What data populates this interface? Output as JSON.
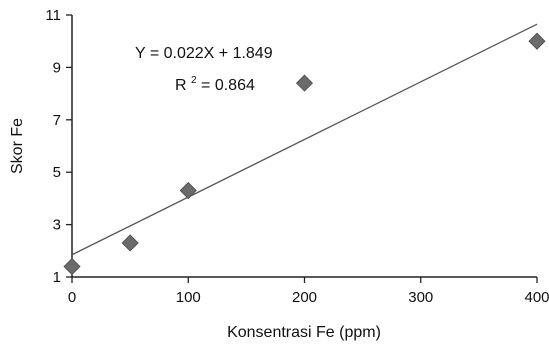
{
  "chart_data": {
    "type": "scatter",
    "title": "",
    "xlabel": "Konsentrasi Fe (ppm)",
    "ylabel": "Skor Fe",
    "xlim": [
      0,
      400
    ],
    "ylim": [
      1,
      11
    ],
    "xticks": [
      0,
      100,
      200,
      300,
      400
    ],
    "yticks": [
      1,
      3,
      5,
      7,
      9,
      11
    ],
    "grid": false,
    "points": [
      {
        "x": 0,
        "y": 1.4
      },
      {
        "x": 50,
        "y": 2.3
      },
      {
        "x": 100,
        "y": 4.3
      },
      {
        "x": 200,
        "y": 8.4
      },
      {
        "x": 400,
        "y": 10
      }
    ],
    "trendline": {
      "slope": 0.022,
      "intercept": 1.849
    },
    "annotations": {
      "equation": "Y = 0.022X + 1.849",
      "r2_prefix": "R",
      "r2_power": "2",
      "r2_value": " = 0.864"
    },
    "marker_color": "#6b6b6b",
    "line_color": "#555555"
  }
}
